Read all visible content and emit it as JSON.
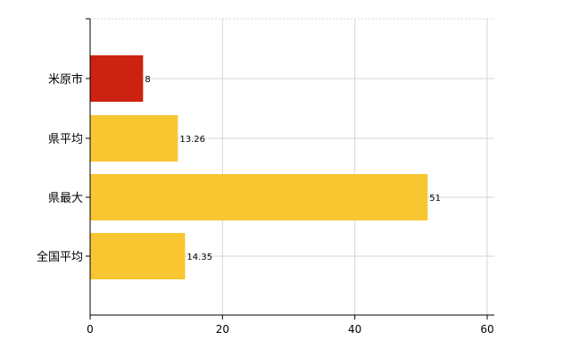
{
  "chart_data": {
    "type": "bar",
    "orientation": "horizontal",
    "categories": [
      "米原市",
      "県平均",
      "県最大",
      "全国平均"
    ],
    "values": [
      8,
      13.26,
      51,
      14.35
    ],
    "value_labels": [
      "8",
      "13.26",
      "51",
      "14.35"
    ],
    "bar_colors": [
      "#cc2211",
      "#f7c631",
      "#f7c631",
      "#f7c631"
    ],
    "xlim": [
      0,
      60
    ],
    "x_ticks": [
      0,
      20,
      40,
      60
    ],
    "x_tick_labels": [
      "0",
      "20",
      "40",
      "60"
    ],
    "grid": true,
    "title": "",
    "xlabel": "",
    "ylabel": ""
  }
}
